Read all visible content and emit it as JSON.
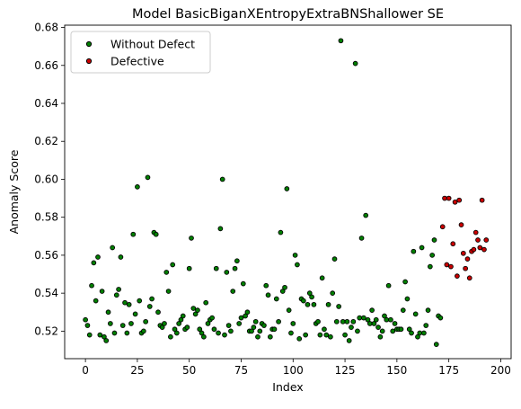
{
  "chart_data": {
    "type": "scatter",
    "title": "Model BasicBiganXEntropyExtraBNShallower SE",
    "xlabel": "Index",
    "ylabel": "Anomaly Score",
    "xlim": [
      -10,
      205
    ],
    "ylim": [
      0.5055,
      0.6812
    ],
    "xticks": [
      0,
      25,
      50,
      75,
      100,
      125,
      150,
      175,
      200
    ],
    "yticks": [
      0.52,
      0.54,
      0.56,
      0.58,
      0.6,
      0.62,
      0.64,
      0.66,
      0.68
    ],
    "grid": false,
    "legend_position": "top-left",
    "series": [
      {
        "name": "Without Defect",
        "color": "#008000",
        "points": [
          [
            0,
            0.526
          ],
          [
            1,
            0.523
          ],
          [
            2,
            0.518
          ],
          [
            3,
            0.544
          ],
          [
            4,
            0.556
          ],
          [
            5,
            0.536
          ],
          [
            6,
            0.559
          ],
          [
            7,
            0.518
          ],
          [
            8,
            0.541
          ],
          [
            9,
            0.517
          ],
          [
            10,
            0.515
          ],
          [
            11,
            0.53
          ],
          [
            12,
            0.524
          ],
          [
            13,
            0.564
          ],
          [
            14,
            0.519
          ],
          [
            15,
            0.539
          ],
          [
            16,
            0.542
          ],
          [
            17,
            0.559
          ],
          [
            18,
            0.523
          ],
          [
            19,
            0.535
          ],
          [
            20,
            0.519
          ],
          [
            21,
            0.534
          ],
          [
            22,
            0.524
          ],
          [
            23,
            0.571
          ],
          [
            24,
            0.529
          ],
          [
            25,
            0.596
          ],
          [
            26,
            0.536
          ],
          [
            27,
            0.519
          ],
          [
            28,
            0.52
          ],
          [
            29,
            0.525
          ],
          [
            30,
            0.601
          ],
          [
            31,
            0.533
          ],
          [
            32,
            0.537
          ],
          [
            33,
            0.572
          ],
          [
            34,
            0.571
          ],
          [
            35,
            0.53
          ],
          [
            36,
            0.523
          ],
          [
            37,
            0.522
          ],
          [
            38,
            0.524
          ],
          [
            39,
            0.551
          ],
          [
            40,
            0.541
          ],
          [
            41,
            0.517
          ],
          [
            42,
            0.555
          ],
          [
            43,
            0.521
          ],
          [
            44,
            0.519
          ],
          [
            45,
            0.524
          ],
          [
            46,
            0.526
          ],
          [
            47,
            0.528
          ],
          [
            48,
            0.521
          ],
          [
            49,
            0.522
          ],
          [
            50,
            0.553
          ],
          [
            51,
            0.569
          ],
          [
            52,
            0.532
          ],
          [
            53,
            0.529
          ],
          [
            54,
            0.531
          ],
          [
            55,
            0.521
          ],
          [
            56,
            0.519
          ],
          [
            57,
            0.517
          ],
          [
            58,
            0.535
          ],
          [
            59,
            0.524
          ],
          [
            60,
            0.526
          ],
          [
            61,
            0.527
          ],
          [
            62,
            0.521
          ],
          [
            63,
            0.553
          ],
          [
            64,
            0.519
          ],
          [
            65,
            0.574
          ],
          [
            66,
            0.6
          ],
          [
            67,
            0.518
          ],
          [
            68,
            0.551
          ],
          [
            69,
            0.523
          ],
          [
            70,
            0.52
          ],
          [
            71,
            0.541
          ],
          [
            72,
            0.553
          ],
          [
            73,
            0.557
          ],
          [
            74,
            0.524
          ],
          [
            75,
            0.527
          ],
          [
            76,
            0.545
          ],
          [
            77,
            0.528
          ],
          [
            78,
            0.53
          ],
          [
            79,
            0.52
          ],
          [
            80,
            0.52
          ],
          [
            81,
            0.522
          ],
          [
            82,
            0.525
          ],
          [
            83,
            0.517
          ],
          [
            84,
            0.52
          ],
          [
            85,
            0.524
          ],
          [
            86,
            0.523
          ],
          [
            87,
            0.544
          ],
          [
            88,
            0.539
          ],
          [
            89,
            0.517
          ],
          [
            90,
            0.521
          ],
          [
            91,
            0.521
          ],
          [
            92,
            0.537
          ],
          [
            93,
            0.525
          ],
          [
            94,
            0.572
          ],
          [
            95,
            0.541
          ],
          [
            96,
            0.543
          ],
          [
            97,
            0.595
          ],
          [
            98,
            0.531
          ],
          [
            99,
            0.519
          ],
          [
            100,
            0.524
          ],
          [
            101,
            0.56
          ],
          [
            102,
            0.555
          ],
          [
            103,
            0.516
          ],
          [
            104,
            0.537
          ],
          [
            105,
            0.536
          ],
          [
            106,
            0.518
          ],
          [
            107,
            0.534
          ],
          [
            108,
            0.54
          ],
          [
            109,
            0.538
          ],
          [
            110,
            0.534
          ],
          [
            111,
            0.524
          ],
          [
            112,
            0.525
          ],
          [
            113,
            0.518
          ],
          [
            114,
            0.548
          ],
          [
            115,
            0.521
          ],
          [
            116,
            0.518
          ],
          [
            117,
            0.534
          ],
          [
            118,
            0.517
          ],
          [
            119,
            0.54
          ],
          [
            120,
            0.558
          ],
          [
            121,
            0.525
          ],
          [
            122,
            0.533
          ],
          [
            123,
            0.673
          ],
          [
            124,
            0.525
          ],
          [
            125,
            0.518
          ],
          [
            126,
            0.525
          ],
          [
            127,
            0.515
          ],
          [
            128,
            0.522
          ],
          [
            129,
            0.525
          ],
          [
            130,
            0.661
          ],
          [
            131,
            0.52
          ],
          [
            132,
            0.527
          ],
          [
            133,
            0.569
          ],
          [
            134,
            0.527
          ],
          [
            135,
            0.581
          ],
          [
            136,
            0.526
          ],
          [
            137,
            0.524
          ],
          [
            138,
            0.531
          ],
          [
            139,
            0.524
          ],
          [
            140,
            0.526
          ],
          [
            141,
            0.522
          ],
          [
            142,
            0.517
          ],
          [
            143,
            0.52
          ],
          [
            144,
            0.528
          ],
          [
            145,
            0.526
          ],
          [
            146,
            0.544
          ],
          [
            147,
            0.526
          ],
          [
            148,
            0.52
          ],
          [
            149,
            0.524
          ],
          [
            150,
            0.521
          ],
          [
            151,
            0.521
          ],
          [
            152,
            0.521
          ],
          [
            153,
            0.531
          ],
          [
            154,
            0.546
          ],
          [
            155,
            0.537
          ],
          [
            156,
            0.521
          ],
          [
            157,
            0.519
          ],
          [
            158,
            0.562
          ],
          [
            159,
            0.529
          ],
          [
            160,
            0.517
          ],
          [
            161,
            0.519
          ],
          [
            162,
            0.564
          ],
          [
            163,
            0.519
          ],
          [
            164,
            0.523
          ],
          [
            165,
            0.531
          ],
          [
            166,
            0.554
          ],
          [
            167,
            0.56
          ],
          [
            168,
            0.568
          ],
          [
            169,
            0.513
          ],
          [
            170,
            0.528
          ],
          [
            171,
            0.527
          ]
        ]
      },
      {
        "name": "Defective",
        "color": "#cc0000",
        "points": [
          [
            172,
            0.575
          ],
          [
            173,
            0.59
          ],
          [
            174,
            0.555
          ],
          [
            175,
            0.59
          ],
          [
            176,
            0.554
          ],
          [
            177,
            0.566
          ],
          [
            178,
            0.588
          ],
          [
            179,
            0.549
          ],
          [
            180,
            0.589
          ],
          [
            181,
            0.576
          ],
          [
            182,
            0.561
          ],
          [
            183,
            0.553
          ],
          [
            184,
            0.558
          ],
          [
            185,
            0.548
          ],
          [
            186,
            0.562
          ],
          [
            187,
            0.563
          ],
          [
            188,
            0.572
          ],
          [
            189,
            0.568
          ],
          [
            190,
            0.564
          ],
          [
            191,
            0.589
          ],
          [
            192,
            0.563
          ],
          [
            193,
            0.568
          ]
        ]
      }
    ]
  }
}
